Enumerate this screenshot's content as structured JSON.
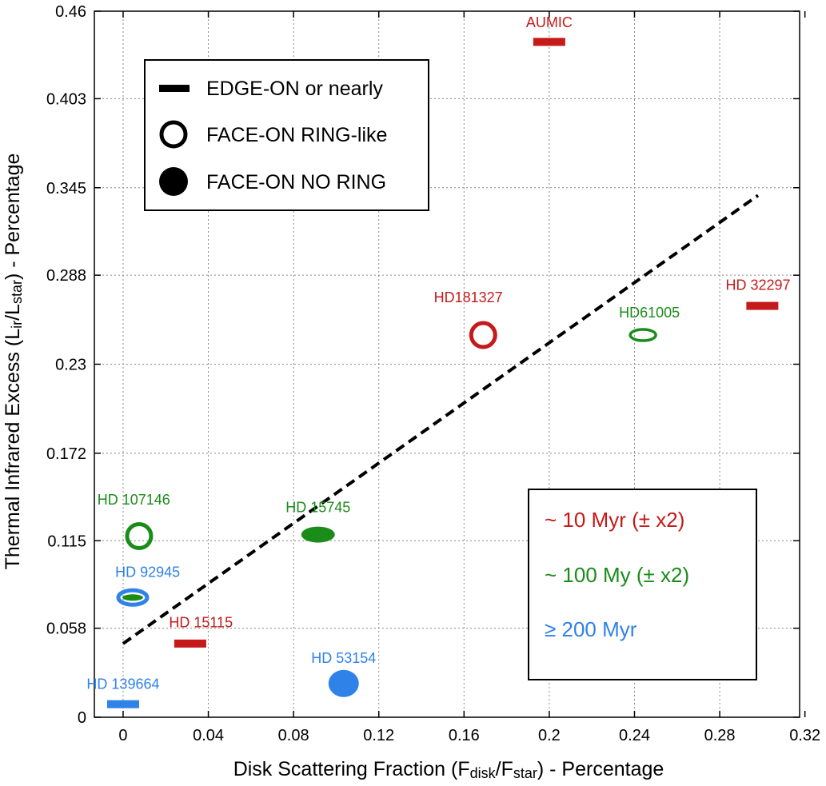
{
  "colors": {
    "red": "#c41a1a",
    "green": "#1a8c1a",
    "blue": "#2f82e8"
  },
  "chart_data": {
    "type": "scatter",
    "xlabel": "Disk Scattering Fraction (F",
    "xlabel_sub1": "disk",
    "xlabel_mid": "/F",
    "xlabel_sub2": "star",
    "xlabel_tail": ") - Percentage",
    "ylabel": "Thermal Infrared Excess (L",
    "ylabel_sub1": "ir",
    "ylabel_mid": "/L",
    "ylabel_sub2": "star",
    "ylabel_tail": ") - Percentage",
    "xlim": [
      -0.0135,
      0.3175
    ],
    "ylim": [
      0,
      0.46
    ],
    "xticks": [
      0,
      0.04,
      0.08,
      0.12,
      0.16,
      0.2,
      0.24,
      0.28,
      0.32
    ],
    "xtick_labels": [
      "0",
      "0.04",
      "0.08",
      "0.12",
      "0.16",
      "0.2",
      "0.24",
      "0.28",
      "0.32"
    ],
    "yticks": [
      0,
      0.058,
      0.115,
      0.172,
      0.23,
      0.288,
      0.345,
      0.403,
      0.46
    ],
    "ytick_labels": [
      "0",
      "0.058",
      "0.115",
      "0.172",
      "0.23",
      "0.288",
      "0.345",
      "0.403",
      "0.46"
    ],
    "grid": true,
    "trend_line": {
      "style": "dashed",
      "x": [
        0,
        0.298
      ],
      "y": [
        0.048,
        0.34
      ]
    },
    "points": [
      {
        "label": "AUMIC",
        "x": 0.2,
        "y": 0.44,
        "marker": "edge-on",
        "age": "10",
        "lx": 0.2,
        "ly": 0.4495,
        "anchor": "middle"
      },
      {
        "label": "HD 32297",
        "x": 0.3,
        "y": 0.268,
        "marker": "edge-on",
        "age": "10",
        "lx": 0.298,
        "ly": 0.2785,
        "anchor": "middle"
      },
      {
        "label": "HD181327",
        "x": 0.169,
        "y": 0.249,
        "marker": "ring",
        "age": "10",
        "lx": 0.162,
        "ly": 0.2705,
        "anchor": "middle"
      },
      {
        "label": "HD61005",
        "x": 0.244,
        "y": 0.249,
        "marker": "ring-thin",
        "age": "100",
        "lx": 0.247,
        "ly": 0.2605,
        "anchor": "middle"
      },
      {
        "label": "HD 107146",
        "x": 0.0075,
        "y": 0.118,
        "marker": "ring",
        "age": "100",
        "lx": 0.005,
        "ly": 0.1385,
        "anchor": "middle"
      },
      {
        "label": "HD 15745",
        "x": 0.0915,
        "y": 0.119,
        "marker": "filled",
        "age": "100",
        "lx": 0.0915,
        "ly": 0.1335,
        "anchor": "middle"
      },
      {
        "label": "HD 92945",
        "x": 0.0045,
        "y": 0.078,
        "marker": "combo",
        "age": "200",
        "lx": 0.0115,
        "ly": 0.0915,
        "anchor": "middle"
      },
      {
        "label": "HD 15115",
        "x": 0.0315,
        "y": 0.048,
        "marker": "edge-on",
        "age": "10",
        "lx": 0.0365,
        "ly": 0.0585,
        "anchor": "middle"
      },
      {
        "label": "HD 53154",
        "x": 0.1035,
        "y": 0.022,
        "marker": "filled",
        "age": "200",
        "lx": 0.1035,
        "ly": 0.0355,
        "anchor": "middle"
      },
      {
        "label": "HD 139664",
        "x": 0.0,
        "y": 0.0085,
        "marker": "edge-on",
        "age": "200",
        "lx": 0.0,
        "ly": 0.0185,
        "anchor": "middle"
      }
    ]
  },
  "legend_markers": {
    "edge_on": "EDGE-ON or nearly",
    "ring": "FACE-ON RING-like",
    "no_ring": "FACE-ON NO RING"
  },
  "legend_ages": {
    "age_10": "~ 10 Myr (± x2)",
    "age_100": "~ 100 My (± x2)",
    "age_200_symbol": "≥",
    "age_200_text": " 200 Myr"
  }
}
